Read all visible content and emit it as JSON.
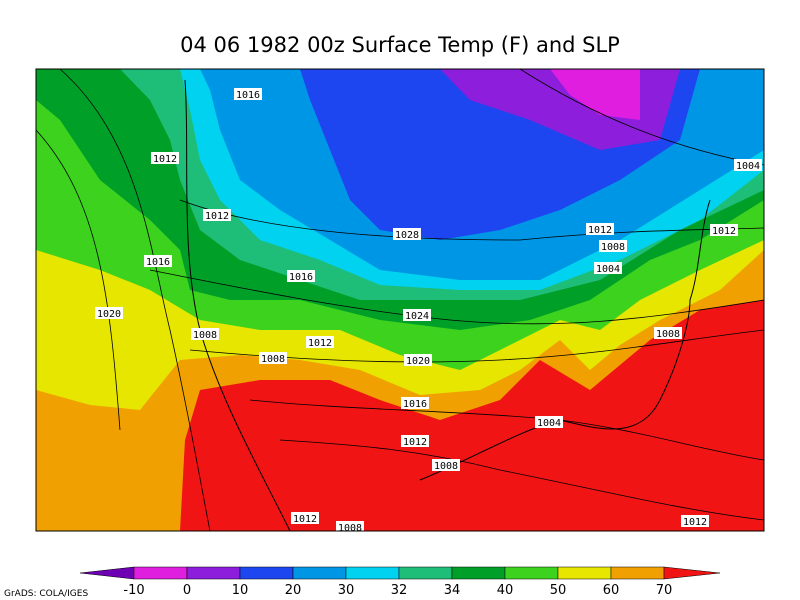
{
  "title": "04 06 1982 00z Surface Temp (F) and SLP",
  "footer": "GrADS: COLA/IGES",
  "contour_labels": [
    1016,
    1012,
    1004,
    1012,
    1028,
    1012,
    1008,
    1012,
    1016,
    1004,
    1016,
    1020,
    1024,
    1008,
    1012,
    1008,
    1008,
    1020,
    1016,
    1004,
    1012,
    1008,
    1012,
    1008,
    1012
  ],
  "colorbar": {
    "levels": [
      -10,
      0,
      10,
      20,
      30,
      32,
      34,
      40,
      50,
      60,
      70
    ],
    "colors": [
      "#6e00b4",
      "#e01ee0",
      "#8c1edc",
      "#1e46f0",
      "#0096e6",
      "#00d2f0",
      "#1ebe78",
      "#00a028",
      "#3cd21e",
      "#e6e600",
      "#f0a000",
      "#f01414"
    ]
  }
}
